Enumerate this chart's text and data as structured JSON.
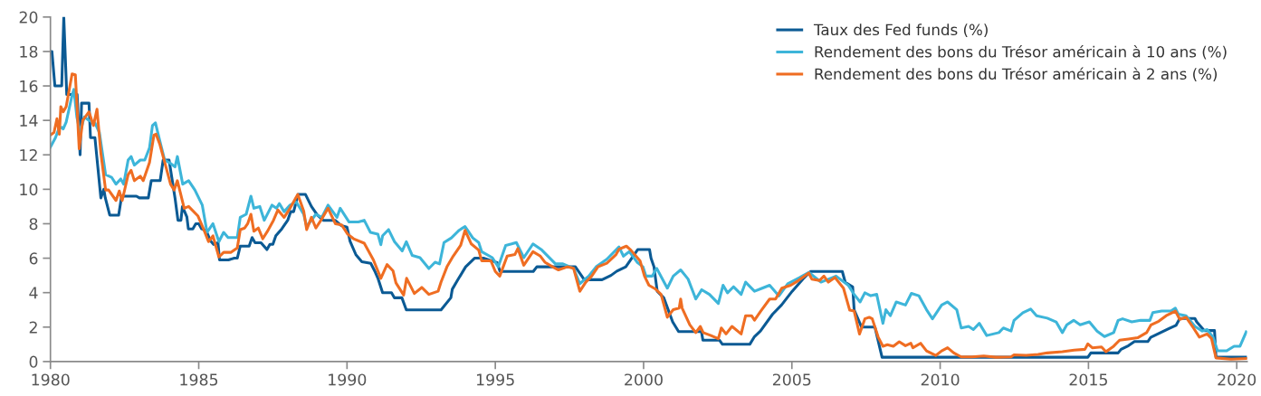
{
  "chart_data": {
    "type": "line",
    "xlim": [
      1980,
      2020.35
    ],
    "xticks": [
      1980,
      1985,
      1990,
      1995,
      2000,
      2005,
      2010,
      2015,
      2020
    ],
    "ylim": [
      0,
      20
    ],
    "yticks": [
      0,
      2,
      4,
      6,
      8,
      10,
      12,
      14,
      16,
      18,
      20
    ],
    "grid": false,
    "legend": "top right",
    "marker": "none",
    "line_style": "solid",
    "series": [
      {
        "name": "Taux des Fed funds (%)",
        "color": "#0b5a94",
        "x": [
          1980.0,
          1980.05,
          1980.15,
          1980.38,
          1980.45,
          1980.55,
          1980.9,
          1981.0,
          1981.05,
          1981.3,
          1981.35,
          1981.5,
          1981.7,
          1981.8,
          1981.85,
          1982.0,
          1982.3,
          1982.4,
          1982.9,
          1983.0,
          1983.3,
          1983.4,
          1983.7,
          1983.8,
          1984.0,
          1984.2,
          1984.3,
          1984.4,
          1984.45,
          1984.6,
          1984.65,
          1984.8,
          1984.9,
          1985.0,
          1985.1,
          1985.25,
          1985.4,
          1985.5,
          1985.65,
          1985.7,
          1986.0,
          1986.2,
          1986.3,
          1986.4,
          1986.7,
          1986.8,
          1986.9,
          1987.1,
          1987.3,
          1987.4,
          1987.5,
          1987.6,
          1987.8,
          1988.0,
          1988.1,
          1988.2,
          1988.35,
          1988.6,
          1988.8,
          1989.0,
          1989.2,
          1989.6,
          1989.8,
          1990.0,
          1990.1,
          1990.3,
          1990.5,
          1990.8,
          1990.95,
          1991.05,
          1991.2,
          1991.5,
          1991.6,
          1991.85,
          1992.0,
          1993.17,
          1993.5,
          1993.55,
          1993.73,
          1994.0,
          1994.3,
          1994.6,
          1995.06,
          1995.16,
          1996.28,
          1996.4,
          1997.7,
          1998.0,
          1998.6,
          1998.9,
          1999.1,
          1999.4,
          1999.6,
          1999.8,
          2000.2,
          2000.25,
          2000.35,
          2000.46,
          2000.68,
          2000.98,
          2001.18,
          2001.95,
          2002.0,
          2002.56,
          2002.66,
          2003.58,
          2003.74,
          2003.94,
          2004.35,
          2004.65,
          2005.01,
          2005.37,
          2005.63,
          2006.7,
          2006.8,
          2007.05,
          2007.1,
          2007.35,
          2007.8,
          2008.04,
          2014.98,
          2015.08,
          2016.0,
          2016.1,
          2016.35,
          2016.55,
          2017.0,
          2017.1,
          2017.4,
          2017.7,
          2017.95,
          2018.08,
          2018.59,
          2018.65,
          2018.9,
          2019.25,
          2019.3,
          2020.3
        ],
        "values": [
          18,
          18,
          16,
          16,
          20,
          15.5,
          15.5,
          12,
          15,
          15,
          13,
          13,
          9.5,
          10,
          9.5,
          8.5,
          8.5,
          9.6,
          9.6,
          9.5,
          9.5,
          10.5,
          10.5,
          11.7,
          11.7,
          9.5,
          8.2,
          8.2,
          9,
          8.4,
          7.7,
          7.7,
          8,
          8,
          7.7,
          7.6,
          7,
          6.8,
          6.9,
          5.9,
          5.9,
          6,
          6,
          6.7,
          6.7,
          7.2,
          6.9,
          6.9,
          6.5,
          6.8,
          6.8,
          7.3,
          7.7,
          8.2,
          8.7,
          8.7,
          9.7,
          9.7,
          9,
          8.5,
          8.2,
          8.2,
          7.9,
          7.8,
          7,
          6.2,
          5.8,
          5.7,
          5.2,
          4.8,
          4,
          4,
          3.7,
          3.7,
          3,
          3,
          3.7,
          4.2,
          4.73,
          5.5,
          6,
          6,
          5.75,
          5.23,
          5.23,
          5.5,
          5.5,
          4.75,
          4.75,
          5,
          5.25,
          5.5,
          6,
          6.5,
          6.5,
          6,
          5.5,
          4.08,
          3.7,
          2.3,
          1.74,
          1.74,
          1.24,
          1.24,
          1.0,
          1.0,
          1.45,
          1.77,
          2.75,
          3.28,
          4.08,
          4.79,
          5.23,
          5.23,
          4.6,
          4.33,
          3.0,
          2.0,
          2.0,
          0.25,
          0.25,
          0.5,
          0.5,
          0.71,
          0.92,
          1.16,
          1.16,
          1.4,
          1.65,
          1.9,
          2.1,
          2.5,
          2.5,
          2.3,
          1.8,
          1.8,
          0.25,
          0.25
        ]
      },
      {
        "name": "Rendement des bons du Trésor américain à 10 ans (%)",
        "color": "#3db5d9",
        "x": [
          1980.0,
          1980.17,
          1980.28,
          1980.38,
          1980.43,
          1980.53,
          1980.73,
          1980.79,
          1980.89,
          1981.0,
          1981.14,
          1981.3,
          1981.5,
          1981.65,
          1981.86,
          1982.06,
          1982.21,
          1982.37,
          1982.47,
          1982.62,
          1982.72,
          1982.83,
          1983.03,
          1983.18,
          1983.34,
          1983.44,
          1983.54,
          1983.69,
          1983.85,
          1984.05,
          1984.2,
          1984.28,
          1984.46,
          1984.66,
          1984.87,
          1985.12,
          1985.28,
          1985.48,
          1985.68,
          1985.84,
          1985.99,
          1986.3,
          1986.4,
          1986.6,
          1986.76,
          1986.86,
          1987.06,
          1987.21,
          1987.47,
          1987.62,
          1987.72,
          1987.88,
          1988.08,
          1988.29,
          1988.54,
          1988.64,
          1988.95,
          1989.15,
          1989.36,
          1989.66,
          1989.77,
          1990.07,
          1990.38,
          1990.58,
          1990.79,
          1991.04,
          1991.14,
          1991.2,
          1991.4,
          1991.6,
          1991.86,
          1992.0,
          1992.2,
          1992.46,
          1992.76,
          1992.97,
          1993.12,
          1993.27,
          1993.52,
          1993.78,
          1993.98,
          1994.24,
          1994.44,
          1994.54,
          1994.9,
          1995.1,
          1995.35,
          1995.55,
          1995.71,
          1995.96,
          1996.27,
          1996.57,
          1996.72,
          1997.03,
          1997.28,
          1997.64,
          1997.85,
          1998.15,
          1998.4,
          1998.76,
          1999.17,
          1999.32,
          1999.52,
          1999.78,
          1999.98,
          2000.08,
          2000.29,
          2000.44,
          2000.8,
          2001.0,
          2001.25,
          2001.5,
          2001.76,
          2001.96,
          2002.22,
          2002.52,
          2002.68,
          2002.83,
          2003.03,
          2003.29,
          2003.44,
          2003.74,
          2004.0,
          2004.25,
          2004.56,
          2004.86,
          2005.27,
          2005.57,
          2005.98,
          2006.49,
          2006.9,
          2007.1,
          2007.3,
          2007.46,
          2007.66,
          2007.86,
          2008.07,
          2008.17,
          2008.32,
          2008.52,
          2008.83,
          2009.03,
          2009.28,
          2009.54,
          2009.74,
          2010.05,
          2010.25,
          2010.56,
          2010.71,
          2010.96,
          2011.12,
          2011.32,
          2011.57,
          2011.98,
          2012.13,
          2012.39,
          2012.49,
          2012.79,
          2013.05,
          2013.25,
          2013.61,
          2013.91,
          2014.12,
          2014.27,
          2014.5,
          2014.72,
          2015.03,
          2015.29,
          2015.54,
          2015.85,
          2016.0,
          2016.15,
          2016.46,
          2016.76,
          2017.07,
          2017.17,
          2017.47,
          2017.78,
          2017.93,
          2018.03,
          2018.29,
          2018.59,
          2018.84,
          2019.0,
          2019.2,
          2019.35,
          2019.66,
          2019.91,
          2020.11,
          2020.32
        ],
        "values": [
          12.45,
          13,
          13.5,
          13.6,
          13.5,
          13.9,
          15.45,
          15.8,
          14.2,
          13.3,
          14.2,
          14,
          13.86,
          13.3,
          10.85,
          10.7,
          10.3,
          10.6,
          10.3,
          11.7,
          11.9,
          11.4,
          11.7,
          11.7,
          12.4,
          13.7,
          13.86,
          12.8,
          11.7,
          11.5,
          11.3,
          11.9,
          10.3,
          10.5,
          9.96,
          9.08,
          7.5,
          8,
          6.96,
          7.5,
          7.2,
          7.2,
          8.37,
          8.55,
          9.6,
          8.9,
          9,
          8.2,
          9.08,
          8.9,
          9.17,
          8.7,
          9.08,
          9.26,
          8.55,
          7.84,
          8.55,
          8.37,
          9.08,
          8.37,
          8.9,
          8.1,
          8.1,
          8.2,
          7.5,
          7.4,
          6.78,
          7.3,
          7.66,
          6.96,
          6.42,
          6.96,
          6.16,
          6.03,
          5.4,
          5.77,
          5.67,
          6.91,
          7.18,
          7.62,
          7.84,
          7.18,
          6.91,
          6.38,
          6.03,
          5.5,
          6.74,
          6.83,
          6.91,
          6.03,
          6.83,
          6.47,
          6.21,
          5.67,
          5.67,
          5.41,
          4.52,
          4.96,
          5.5,
          5.94,
          6.65,
          6.12,
          6.38,
          5.77,
          5.5,
          4.96,
          4.96,
          5.41,
          4.26,
          4.96,
          5.32,
          4.79,
          3.63,
          4.17,
          3.9,
          3.37,
          4.43,
          3.99,
          4.34,
          3.9,
          4.61,
          4.08,
          4.26,
          4.43,
          3.81,
          4.52,
          4.88,
          5.18,
          4.61,
          4.96,
          4.43,
          3.9,
          3.46,
          3.99,
          3.82,
          3.9,
          2.22,
          3.01,
          2.66,
          3.46,
          3.28,
          3.96,
          3.82,
          3.01,
          2.48,
          3.28,
          3.46,
          3.01,
          1.95,
          2.04,
          1.86,
          2.22,
          1.51,
          1.68,
          1.95,
          1.77,
          2.39,
          2.84,
          3.05,
          2.66,
          2.52,
          2.3,
          1.68,
          2.13,
          2.39,
          2.13,
          2.3,
          1.77,
          1.45,
          1.68,
          2.39,
          2.48,
          2.3,
          2.39,
          2.39,
          2.84,
          2.93,
          2.93,
          3.1,
          2.75,
          2.66,
          2.04,
          1.77,
          1.86,
          1.42,
          0.62,
          0.62,
          0.89,
          0.89,
          1.72
        ]
      },
      {
        "name": "Rendement des bons du Trésor américain à 2 ans (%)",
        "color": "#ef6d22",
        "x": [
          1980.0,
          1980.12,
          1980.22,
          1980.3,
          1980.35,
          1980.43,
          1980.53,
          1980.73,
          1980.84,
          1980.97,
          1981.09,
          1981.3,
          1981.45,
          1981.57,
          1981.7,
          1981.86,
          1981.96,
          1982.21,
          1982.32,
          1982.42,
          1982.62,
          1982.72,
          1982.83,
          1983.03,
          1983.13,
          1983.34,
          1983.49,
          1983.56,
          1983.69,
          1983.8,
          1984.05,
          1984.17,
          1984.28,
          1984.51,
          1984.66,
          1984.97,
          1985.17,
          1985.33,
          1985.48,
          1985.68,
          1985.84,
          1986.09,
          1986.3,
          1986.4,
          1986.55,
          1986.65,
          1986.76,
          1986.86,
          1987.01,
          1987.16,
          1987.32,
          1987.52,
          1987.67,
          1987.88,
          1988.08,
          1988.34,
          1988.54,
          1988.64,
          1988.8,
          1988.95,
          1989.15,
          1989.36,
          1989.61,
          1989.82,
          1990.02,
          1990.22,
          1990.58,
          1990.89,
          1991.14,
          1991.35,
          1991.55,
          1991.65,
          1991.91,
          1992.01,
          1992.27,
          1992.52,
          1992.76,
          1993.07,
          1993.17,
          1993.37,
          1993.58,
          1993.83,
          1993.98,
          1994.19,
          1994.44,
          1994.54,
          1994.85,
          1995.0,
          1995.15,
          1995.4,
          1995.66,
          1995.76,
          1995.96,
          1996.27,
          1996.52,
          1996.67,
          1996.93,
          1997.13,
          1997.43,
          1997.64,
          1997.85,
          1998.05,
          1998.25,
          1998.46,
          1998.76,
          1999.07,
          1999.17,
          1999.42,
          1999.57,
          1999.88,
          2000.03,
          2000.18,
          2000.39,
          2000.59,
          2000.8,
          2001.0,
          2001.2,
          2001.25,
          2001.3,
          2001.56,
          2001.76,
          2001.91,
          2002.01,
          2002.27,
          2002.52,
          2002.62,
          2002.78,
          2002.98,
          2003.29,
          2003.44,
          2003.64,
          2003.74,
          2003.95,
          2004.25,
          2004.45,
          2004.66,
          2004.96,
          2005.22,
          2005.57,
          2005.67,
          2005.93,
          2006.08,
          2006.23,
          2006.45,
          2006.74,
          2006.95,
          2007.1,
          2007.28,
          2007.46,
          2007.61,
          2007.71,
          2007.91,
          2008.07,
          2008.22,
          2008.42,
          2008.62,
          2008.83,
          2009.01,
          2009.08,
          2009.34,
          2009.54,
          2009.85,
          2010.05,
          2010.25,
          2010.46,
          2010.71,
          2011.07,
          2011.47,
          2011.88,
          2012.39,
          2012.49,
          2012.9,
          2013.3,
          2013.61,
          2014.12,
          2014.52,
          2014.88,
          2014.98,
          2015.13,
          2015.44,
          2015.59,
          2015.85,
          2016.05,
          2016.35,
          2016.66,
          2016.96,
          2017.11,
          2017.37,
          2017.62,
          2017.93,
          2018.08,
          2018.29,
          2018.54,
          2018.74,
          2019.0,
          2019.15,
          2019.3,
          2019.81,
          2020.32
        ],
        "values": [
          13.15,
          13.3,
          14.1,
          13.2,
          14.8,
          14.5,
          14.8,
          16.7,
          16.65,
          12.35,
          14,
          14.5,
          13.7,
          14.65,
          12.1,
          9.96,
          9.96,
          9.35,
          9.9,
          9.35,
          10.85,
          11.1,
          10.5,
          10.76,
          10.5,
          11.56,
          13.15,
          13.2,
          12.6,
          11.9,
          10.3,
          9.96,
          10.5,
          8.9,
          9,
          8.46,
          7.66,
          6.96,
          7.3,
          6.07,
          6.34,
          6.34,
          6.6,
          7.66,
          7.75,
          8,
          8.55,
          7.57,
          7.75,
          7.13,
          7.57,
          8.2,
          8.8,
          8.37,
          8.9,
          9.7,
          8.73,
          7.66,
          8.37,
          7.75,
          8.28,
          8.9,
          8,
          7.93,
          7.4,
          7.13,
          6.87,
          5.9,
          4.83,
          5.63,
          5.27,
          4.57,
          3.86,
          4.83,
          3.95,
          4.3,
          3.9,
          4.08,
          4.61,
          5.5,
          6.12,
          6.74,
          7.62,
          6.83,
          6.47,
          5.85,
          5.85,
          5.23,
          4.96,
          6.12,
          6.21,
          6.56,
          5.59,
          6.38,
          6.12,
          5.77,
          5.5,
          5.32,
          5.5,
          5.41,
          4.08,
          4.61,
          4.96,
          5.5,
          5.71,
          6.21,
          6.52,
          6.7,
          6.47,
          5.85,
          4.96,
          4.43,
          4.22,
          3.9,
          2.57,
          3.01,
          3.1,
          3.63,
          3.1,
          2.13,
          1.68,
          2.04,
          1.68,
          1.51,
          1.33,
          1.95,
          1.6,
          2.04,
          1.6,
          2.66,
          2.66,
          2.4,
          2.93,
          3.63,
          3.63,
          4.26,
          4.43,
          4.7,
          5.14,
          4.79,
          4.7,
          4.96,
          4.61,
          4.88,
          4.26,
          2.98,
          2.93,
          1.6,
          2.48,
          2.57,
          2.48,
          1.42,
          0.89,
          0.98,
          0.89,
          1.15,
          0.92,
          1.06,
          0.8,
          1.06,
          0.62,
          0.35,
          0.62,
          0.8,
          0.5,
          0.27,
          0.27,
          0.32,
          0.25,
          0.27,
          0.39,
          0.36,
          0.41,
          0.5,
          0.57,
          0.66,
          0.71,
          1.03,
          0.8,
          0.85,
          0.57,
          0.89,
          1.24,
          1.31,
          1.38,
          1.68,
          2.13,
          2.34,
          2.66,
          2.93,
          2.45,
          2.57,
          1.95,
          1.42,
          1.6,
          1.33,
          0.21,
          0.14,
          0.18
        ]
      }
    ]
  }
}
